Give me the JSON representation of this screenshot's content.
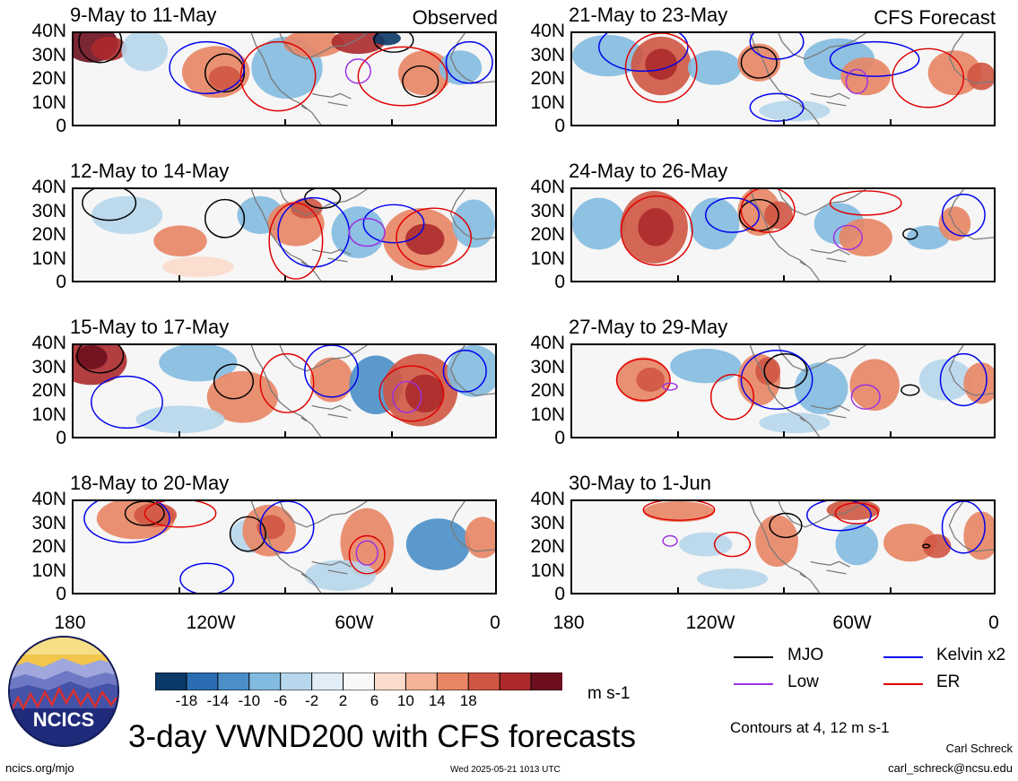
{
  "corner_labels": {
    "observed": "Observed",
    "forecast": "CFS Forecast"
  },
  "y_ticks": [
    "40N",
    "30N",
    "20N",
    "10N",
    "0"
  ],
  "x_ticks": [
    "180",
    "120W",
    "60W",
    "0"
  ],
  "panels": [
    {
      "id": "p1",
      "col": 0,
      "row": 0,
      "title": "9-May to 11-May"
    },
    {
      "id": "p2",
      "col": 0,
      "row": 1,
      "title": "12-May to 14-May"
    },
    {
      "id": "p3",
      "col": 0,
      "row": 2,
      "title": "15-May to 17-May"
    },
    {
      "id": "p4",
      "col": 0,
      "row": 3,
      "title": "18-May to 20-May"
    },
    {
      "id": "p5",
      "col": 1,
      "row": 0,
      "title": "21-May to 23-May"
    },
    {
      "id": "p6",
      "col": 1,
      "row": 1,
      "title": "24-May to 26-May"
    },
    {
      "id": "p7",
      "col": 1,
      "row": 2,
      "title": "27-May to 29-May"
    },
    {
      "id": "p8",
      "col": 1,
      "row": 3,
      "title": "30-May to 1-Jun"
    }
  ],
  "chart_data": {
    "type": "heatmap",
    "title": "3-day VWND200 with CFS forecasts",
    "variable": "VWND200",
    "units": "m s-1",
    "x_axis": {
      "label": "",
      "ticks": [
        "180",
        "120W",
        "60W",
        "0"
      ],
      "range_lon": [
        -180,
        0
      ]
    },
    "y_axis": {
      "label": "",
      "ticks": [
        "0",
        "10N",
        "20N",
        "30N",
        "40N"
      ],
      "range_lat": [
        0,
        40
      ]
    },
    "colorbar": {
      "levels": [
        -18,
        -14,
        -10,
        -6,
        -2,
        2,
        6,
        10,
        14,
        18
      ],
      "labels": [
        "-18",
        "-14",
        "-10",
        "-6",
        "-2",
        "2",
        "6",
        "10",
        "14",
        "18"
      ],
      "colors": [
        "#0b3968",
        "#2a6db2",
        "#4a8fc8",
        "#83bbe0",
        "#b7d7ec",
        "#e2eef7",
        "#f8f8f8",
        "#fbdccc",
        "#f5b397",
        "#e88565",
        "#cf5743",
        "#ac2a2c",
        "#6e0f1e"
      ]
    },
    "contours": {
      "note": "Contours at 4, 12 m s-1",
      "series": [
        {
          "name": "MJO",
          "color": "#000000"
        },
        {
          "name": "Kelvin x2",
          "color": "#0000ee"
        },
        {
          "name": "Low",
          "color": "#9b30e0"
        },
        {
          "name": "ER",
          "color": "#e00000"
        }
      ]
    }
  },
  "branding": {
    "logo_text": "NCICS",
    "url": "ncics.org/mjo",
    "timestamp": "Wed 2025-05-21 1013 UTC",
    "author": "Carl Schreck",
    "email": "carl_schreck@ncsu.edu"
  }
}
